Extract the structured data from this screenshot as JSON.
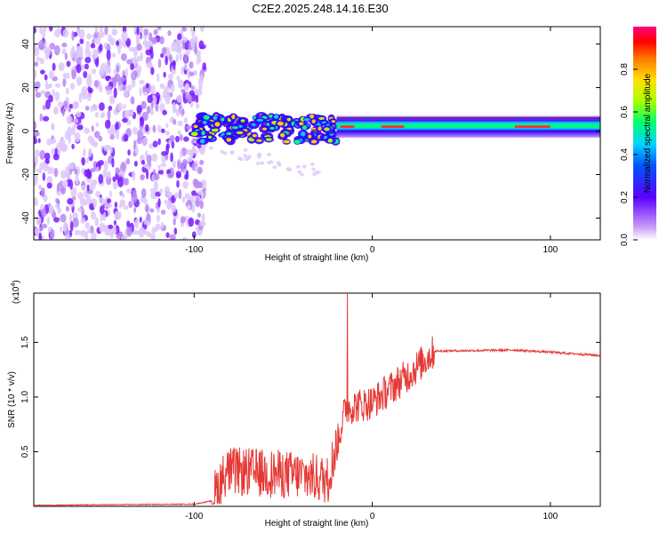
{
  "figure_title": "C2E2.2025.248.14.16.E30",
  "chart_data": [
    {
      "type": "heatmap",
      "xlabel": "Height of straight line (km)",
      "ylabel": "Frequency (Hz)",
      "xlim": [
        -190,
        128
      ],
      "ylim": [
        -50,
        48
      ],
      "x_ticks": [
        -100,
        0,
        100
      ],
      "y_ticks": [
        -40,
        -20,
        0,
        20,
        40
      ],
      "colorbar": {
        "label": "Normalized spectral amplitude",
        "range": [
          0,
          1
        ],
        "ticks": [
          0.0,
          0.2,
          0.4,
          0.6,
          0.8
        ],
        "tick_labels": [
          "0.0",
          "0.2",
          "0.4",
          "0.6",
          "0.8"
        ]
      },
      "regions": [
        {
          "name": "noise",
          "x_range": [
            -190,
            -100
          ],
          "freq_range": [
            -50,
            48
          ],
          "amplitude": 0.1
        },
        {
          "name": "transition",
          "x_range": [
            -100,
            -20
          ],
          "freq_range": [
            -8,
            10
          ],
          "amplitude": 0.35
        },
        {
          "name": "steady-tone",
          "x_range": [
            -20,
            128
          ],
          "freq_center": 2,
          "freq_halfwidth": 3,
          "amplitude": 0.9
        }
      ]
    },
    {
      "type": "line",
      "xlabel": "Height of straight line (km)",
      "ylabel": "SNR (10 * v/v)",
      "y_scale_label": "(x10",
      "y_scale_exp": "4",
      "xlim": [
        -190,
        128
      ],
      "ylim": [
        0,
        1.95
      ],
      "x_ticks": [
        -100,
        0,
        100
      ],
      "y_ticks": [
        0.5,
        1.0,
        1.5
      ],
      "y_tick_labels": [
        "0.5",
        "1.0",
        "1.5"
      ],
      "color": "#e53935",
      "series_summary": [
        {
          "x": -190,
          "y": 0.01
        },
        {
          "x": -100,
          "y": 0.02
        },
        {
          "x": -90,
          "y": 0.05
        },
        {
          "x": -82,
          "y": 0.3
        },
        {
          "x": -60,
          "y": 0.28
        },
        {
          "x": -40,
          "y": 0.26
        },
        {
          "x": -25,
          "y": 0.22
        },
        {
          "x": -20,
          "y": 0.55
        },
        {
          "x": -15,
          "y": 0.9
        },
        {
          "x": 0,
          "y": 0.95
        },
        {
          "x": 20,
          "y": 1.2
        },
        {
          "x": 35,
          "y": 1.42
        },
        {
          "x": 80,
          "y": 1.43
        },
        {
          "x": 90,
          "y": 1.42
        },
        {
          "x": 100,
          "y": 1.41
        },
        {
          "x": 128,
          "y": 1.38
        }
      ],
      "peak": {
        "x": -14,
        "y": 1.95
      }
    }
  ]
}
